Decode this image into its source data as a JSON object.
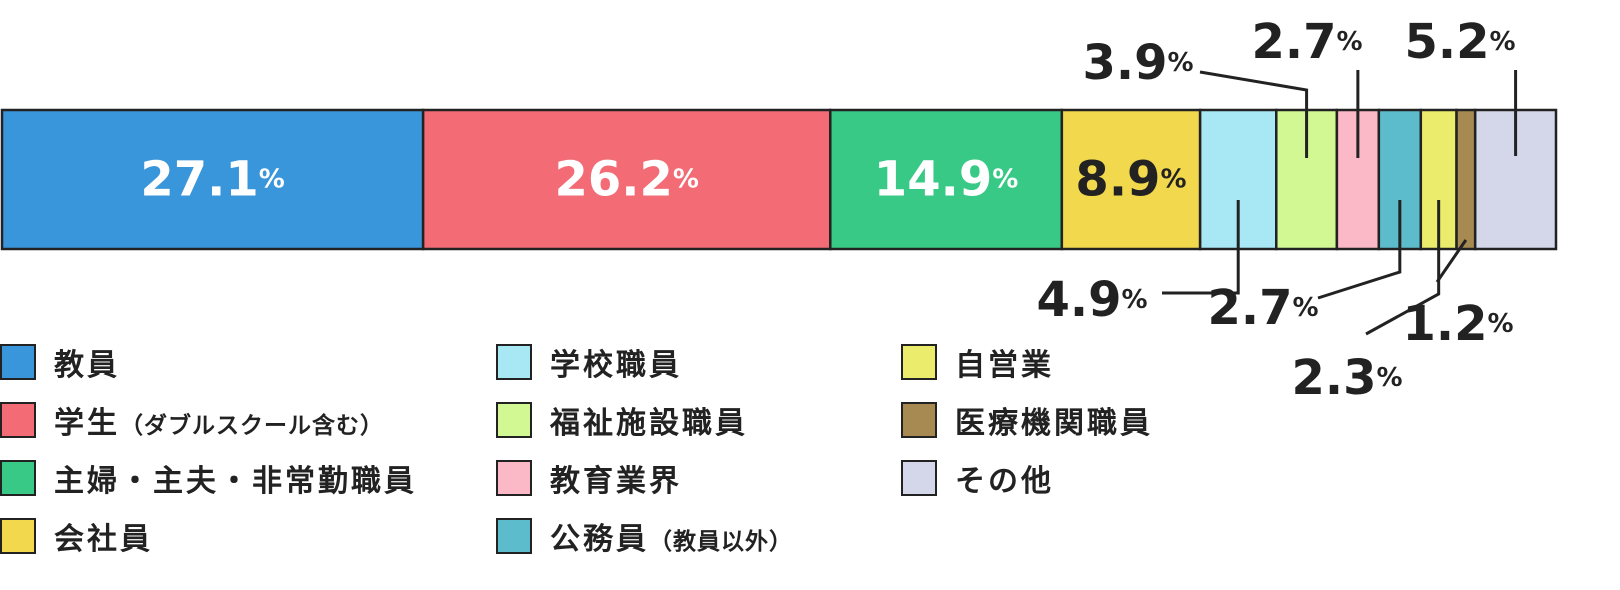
{
  "chart_data": {
    "type": "bar",
    "orientation": "horizontal-stacked-100",
    "unit": "%",
    "categories": [
      {
        "label": "教員",
        "note": "",
        "value": 27.1,
        "color": "#3a96db",
        "label_style": "inside-white"
      },
      {
        "label": "学生",
        "note": "（ダブルスクール含む）",
        "value": 26.2,
        "color": "#f26b75",
        "label_style": "inside-white"
      },
      {
        "label": "主婦・主夫・非常勤職員",
        "note": "",
        "value": 14.9,
        "color": "#39c987",
        "label_style": "inside-white"
      },
      {
        "label": "会社員",
        "note": "",
        "value": 8.9,
        "color": "#f2d84c",
        "label_style": "inside-dark"
      },
      {
        "label": "学校職員",
        "note": "",
        "value": 4.9,
        "color": "#a8e8f4",
        "label_style": "callout-below"
      },
      {
        "label": "福祉施設職員",
        "note": "",
        "value": 3.9,
        "color": "#d2f893",
        "label_style": "callout-above"
      },
      {
        "label": "教育業界",
        "note": "",
        "value": 2.7,
        "color": "#fbb8c6",
        "label_style": "callout-above"
      },
      {
        "label": "公務員",
        "note": "（教員以外）",
        "value": 2.7,
        "color": "#5cbccc",
        "label_style": "callout-below"
      },
      {
        "label": "自営業",
        "note": "",
        "value": 2.3,
        "color": "#ebec6b",
        "label_style": "callout-below"
      },
      {
        "label": "医療機関職員",
        "note": "",
        "value": 1.2,
        "color": "#a68a52",
        "label_style": "callout-below"
      },
      {
        "label": "その他",
        "note": "",
        "value": 5.2,
        "color": "#d4d7ea",
        "label_style": "callout-above"
      }
    ],
    "legend": {
      "placement": "bottom",
      "columns": 3
    }
  }
}
